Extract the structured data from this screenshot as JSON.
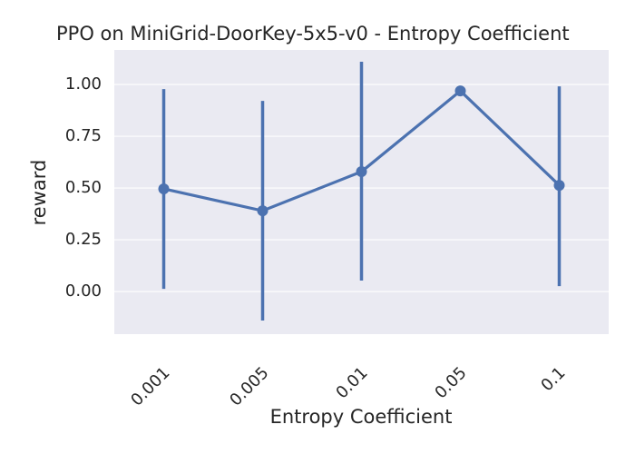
{
  "chart_data": {
    "type": "pointplot",
    "title": "PPO on MiniGrid-DoorKey-5x5-v0 - Entropy Coefficient",
    "xlabel": "Entropy Coefficient",
    "ylabel": "reward",
    "categories": [
      "0.001",
      "0.005",
      "0.01",
      "0.05",
      "0.1"
    ],
    "values": [
      0.496,
      0.39,
      0.579,
      0.969,
      0.513
    ],
    "ci_lower": [
      0.013,
      -0.14,
      0.053,
      0.969,
      0.026
    ],
    "ci_upper": [
      0.978,
      0.921,
      1.11,
      0.969,
      0.991
    ],
    "color": "#4c72b0",
    "ylim": [
      -0.206,
      1.167
    ],
    "yticks": [
      {
        "value": 0,
        "label": "0.00"
      },
      {
        "value": 0.25,
        "label": "0.25"
      },
      {
        "value": 0.5,
        "label": "0.50"
      },
      {
        "value": 0.75,
        "label": "0.75"
      },
      {
        "value": 1,
        "label": "1.00"
      }
    ],
    "grid": true
  }
}
